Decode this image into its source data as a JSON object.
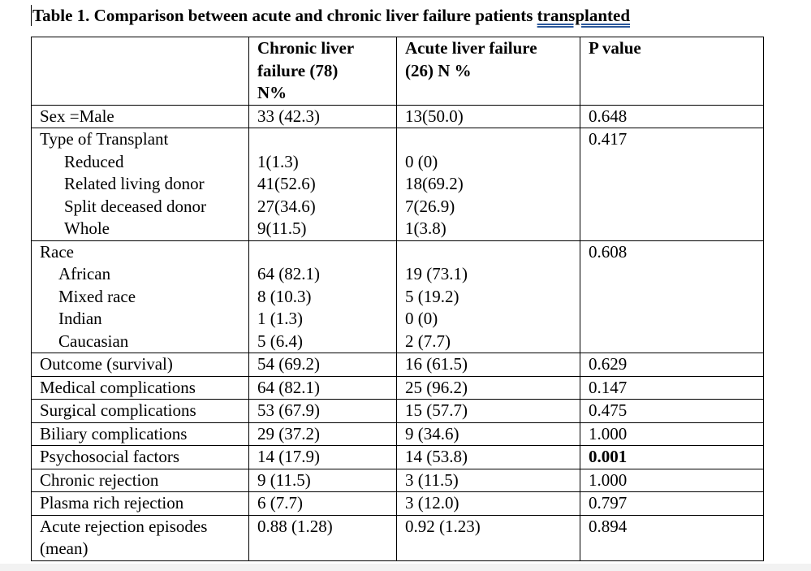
{
  "caption": {
    "text_before": "Table 1. Comparison between acute and chronic liver failure patients ",
    "text_underlined": "transplanted"
  },
  "table": {
    "headers": {
      "col1": "",
      "col2_line1": "Chronic liver",
      "col2_line2": "failure (78)",
      "col2_line3": "N%",
      "col3_line1": "Acute liver failure",
      "col3_line2": "(26) N %",
      "col4": "P value"
    },
    "sex": {
      "label": "Sex =Male",
      "chronic": "33 (42.3)",
      "acute": "13(50.0)",
      "p": "0.648"
    },
    "transplant": {
      "label": "Type of Transplant",
      "p": "0.417",
      "items": [
        {
          "label": "Reduced",
          "chronic": "1(1.3)",
          "acute": "0 (0)"
        },
        {
          "label": "Related living donor",
          "chronic": "41(52.6)",
          "acute": "18(69.2)"
        },
        {
          "label": "Split deceased donor",
          "chronic": "27(34.6)",
          "acute": "7(26.9)"
        },
        {
          "label": "Whole",
          "chronic": "9(11.5)",
          "acute": "1(3.8)"
        }
      ]
    },
    "race": {
      "label": "Race",
      "p": "0.608",
      "items": [
        {
          "label": "African",
          "chronic": "64 (82.1)",
          "acute": "19 (73.1)"
        },
        {
          "label": "Mixed race",
          "chronic": "8 (10.3)",
          "acute": "5 (19.2)"
        },
        {
          "label": "Indian",
          "chronic": "1 (1.3)",
          "acute": "0 (0)"
        },
        {
          "label": "Caucasian",
          "chronic": "5 (6.4)",
          "acute": "2 (7.7)"
        }
      ]
    },
    "rows": [
      {
        "label": "Outcome (survival)",
        "chronic": "54 (69.2)",
        "acute": "16 (61.5)",
        "p": "0.629"
      },
      {
        "label": "Medical complications",
        "chronic": "64 (82.1)",
        "acute": "25 (96.2)",
        "p": "0.147"
      },
      {
        "label": "Surgical complications",
        "chronic": "53 (67.9)",
        "acute": "15 (57.7)",
        "p": "0.475"
      },
      {
        "label": "Biliary complications",
        "chronic": "29 (37.2)",
        "acute": "9 (34.6)",
        "p": "1.000"
      },
      {
        "label": "Psychosocial factors",
        "chronic": "14 (17.9)",
        "acute": "14 (53.8)",
        "p": "0.001"
      },
      {
        "label": "Chronic rejection",
        "chronic": "9 (11.5)",
        "acute": "3 (11.5)",
        "p": "1.000"
      },
      {
        "label": "Plasma rich rejection",
        "chronic": "6 (7.7)",
        "acute": "3 (12.0)",
        "p": "0.797"
      }
    ],
    "acute_rejection": {
      "label_line1": "Acute rejection episodes",
      "label_line2": "(mean)",
      "chronic": "0.88 (1.28)",
      "acute": "0.92 (1.23)",
      "p": "0.894"
    }
  }
}
